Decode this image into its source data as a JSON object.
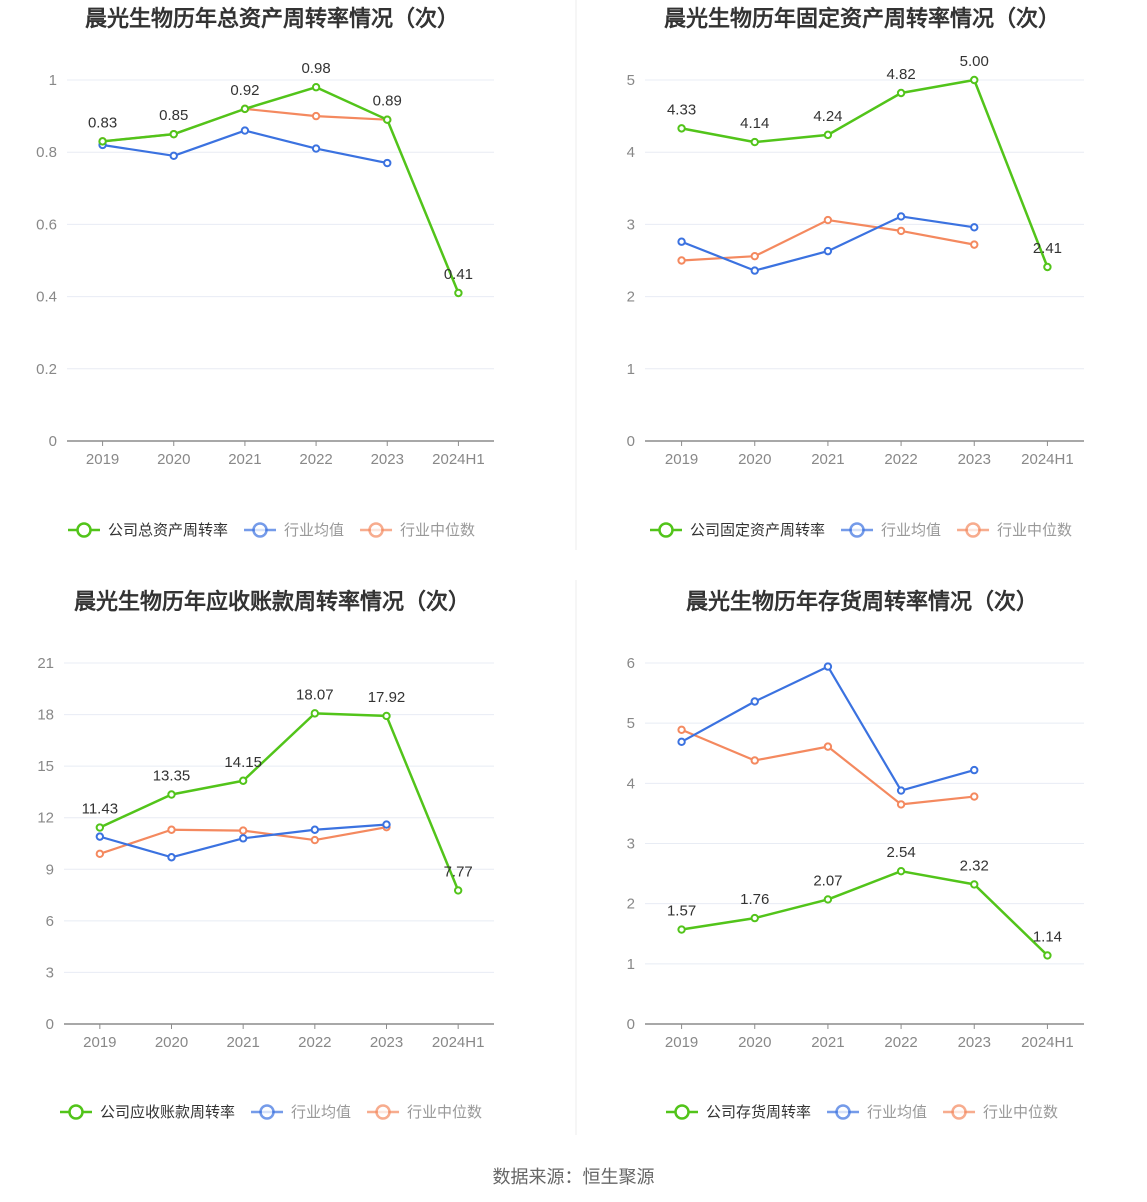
{
  "source_text": "数据来源：恒生聚源",
  "colors": {
    "company": "#52c41a",
    "avg": "#3b72e0",
    "median": "#f4895f",
    "grid": "#e8ecf4",
    "axis": "#8c8c8c"
  },
  "chart_data": [
    {
      "type": "line",
      "title": "晨光生物历年总资产周转率情况（次）",
      "categories": [
        "2019",
        "2020",
        "2021",
        "2022",
        "2023",
        "2024H1"
      ],
      "yticks": [
        "0",
        "0.2",
        "0.4",
        "0.6",
        "0.8",
        "1"
      ],
      "ylim": [
        0,
        1
      ],
      "grid": true,
      "legend_position": "bottom",
      "series": [
        {
          "name": "公司总资产周转率",
          "role": "company",
          "values": [
            0.83,
            0.85,
            0.92,
            0.98,
            0.89,
            0.41
          ],
          "labels": [
            "0.83",
            "0.85",
            "0.92",
            "0.98",
            "0.89",
            "0.41"
          ]
        },
        {
          "name": "行业均值",
          "role": "avg",
          "values": [
            0.82,
            0.79,
            0.86,
            0.81,
            0.77,
            null
          ]
        },
        {
          "name": "行业中位数",
          "role": "median",
          "values": [
            0.83,
            0.85,
            0.92,
            0.9,
            0.89,
            null
          ]
        }
      ]
    },
    {
      "type": "line",
      "title": "晨光生物历年固定资产周转率情况（次）",
      "categories": [
        "2019",
        "2020",
        "2021",
        "2022",
        "2023",
        "2024H1"
      ],
      "yticks": [
        "0",
        "1",
        "2",
        "3",
        "4",
        "5"
      ],
      "ylim": [
        0,
        5
      ],
      "grid": true,
      "legend_position": "bottom",
      "series": [
        {
          "name": "公司固定资产周转率",
          "role": "company",
          "values": [
            4.33,
            4.14,
            4.24,
            4.82,
            5.0,
            2.41
          ],
          "labels": [
            "4.33",
            "4.14",
            "4.24",
            "4.82",
            "5.00",
            "2.41"
          ]
        },
        {
          "name": "行业均值",
          "role": "avg",
          "values": [
            2.76,
            2.36,
            2.63,
            3.11,
            2.96,
            null
          ]
        },
        {
          "name": "行业中位数",
          "role": "median",
          "values": [
            2.5,
            2.56,
            3.06,
            2.91,
            2.72,
            null
          ]
        }
      ]
    },
    {
      "type": "line",
      "title": "晨光生物历年应收账款周转率情况（次）",
      "categories": [
        "2019",
        "2020",
        "2021",
        "2022",
        "2023",
        "2024H1"
      ],
      "yticks": [
        "0",
        "3",
        "6",
        "9",
        "12",
        "15",
        "18",
        "21"
      ],
      "ylim": [
        0,
        21
      ],
      "grid": true,
      "legend_position": "bottom",
      "series": [
        {
          "name": "公司应收账款周转率",
          "role": "company",
          "values": [
            11.43,
            13.35,
            14.15,
            18.07,
            17.92,
            7.77
          ],
          "labels": [
            "11.43",
            "13.35",
            "14.15",
            "18.07",
            "17.92",
            "7.77"
          ]
        },
        {
          "name": "行业均值",
          "role": "avg",
          "values": [
            10.9,
            9.7,
            10.8,
            11.3,
            11.6,
            null
          ]
        },
        {
          "name": "行业中位数",
          "role": "median",
          "values": [
            9.9,
            11.3,
            11.25,
            10.7,
            11.45,
            null
          ]
        }
      ]
    },
    {
      "type": "line",
      "title": "晨光生物历年存货周转率情况（次）",
      "categories": [
        "2019",
        "2020",
        "2021",
        "2022",
        "2023",
        "2024H1"
      ],
      "yticks": [
        "0",
        "1",
        "2",
        "3",
        "4",
        "5",
        "6"
      ],
      "ylim": [
        0,
        6
      ],
      "grid": true,
      "legend_position": "bottom",
      "series": [
        {
          "name": "公司存货周转率",
          "role": "company",
          "values": [
            1.57,
            1.76,
            2.07,
            2.54,
            2.32,
            1.14
          ],
          "labels": [
            "1.57",
            "1.76",
            "2.07",
            "2.54",
            "2.32",
            "1.14"
          ]
        },
        {
          "name": "行业均值",
          "role": "avg",
          "values": [
            4.69,
            5.36,
            5.94,
            3.88,
            4.22,
            null
          ]
        },
        {
          "name": "行业中位数",
          "role": "median",
          "values": [
            4.89,
            4.38,
            4.61,
            3.65,
            3.78,
            null
          ]
        }
      ]
    }
  ]
}
